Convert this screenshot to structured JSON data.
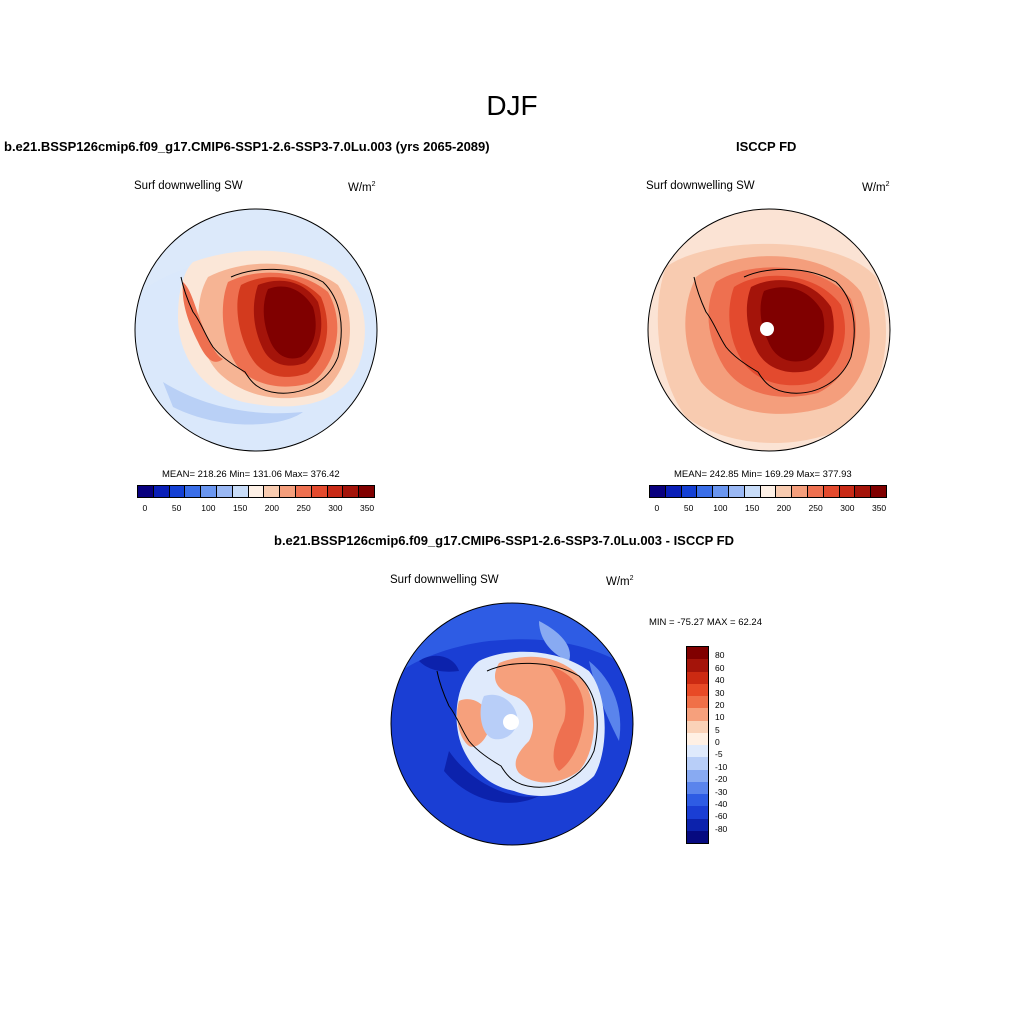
{
  "page": {
    "season": "DJF"
  },
  "units": {
    "base": "W/m",
    "exp": "2"
  },
  "variable": "Surf downwelling SW",
  "panels": {
    "model": {
      "title": "b.e21.BSSP126cmip6.f09_g17.CMIP6-SSP1-2.6-SSP3-7.0Lu.003 (yrs 2065-2089)",
      "stats": "MEAN= 218.26  Min= 131.06  Max= 376.42"
    },
    "obs": {
      "title": "ISCCP FD",
      "stats": "MEAN= 242.85  Min= 169.29  Max= 377.93"
    },
    "diff": {
      "title": "b.e21.BSSP126cmip6.f09_g17.CMIP6-SSP1-2.6-SSP3-7.0Lu.003 - ISCCP FD",
      "stats": "MIN = -75.27 MAX =  62.24"
    }
  },
  "colors": {
    "abs": [
      "#08007f",
      "#0a1fb8",
      "#1440d4",
      "#3a6ee8",
      "#6a96f0",
      "#9ab8f4",
      "#c8dcf8",
      "#fdf0e6",
      "#f8cbb0",
      "#f49e7c",
      "#ee7050",
      "#e34a2e",
      "#c82a16",
      "#a4140a",
      "#800000"
    ],
    "diff": [
      "#800000",
      "#a4140a",
      "#cc2a12",
      "#e84a26",
      "#f07048",
      "#f6a07c",
      "#fad2b8",
      "#fff0e4",
      "#dfeafc",
      "#b8cef8",
      "#88aaf2",
      "#5a84ec",
      "#2e5ce4",
      "#1a3ed4",
      "#0c22ac",
      "#060a80"
    ]
  },
  "chart_data": [
    {
      "type": "heatmap",
      "title": "b.e21.BSSP126cmip6.f09_g17.CMIP6-SSP1-2.6-SSP3-7.0Lu.003 (yrs 2065-2089)",
      "variable": "Surf downwelling SW",
      "units": "W/m2",
      "projection": "south polar stereographic",
      "mean": 218.26,
      "min": 131.06,
      "max": 376.42,
      "colorbar_levels": [
        0,
        25,
        50,
        75,
        100,
        125,
        150,
        175,
        200,
        225,
        250,
        275,
        300,
        325,
        350
      ],
      "colorbar_tick_labels": [
        "0",
        "50",
        "100",
        "150",
        "200",
        "250",
        "300",
        "350"
      ]
    },
    {
      "type": "heatmap",
      "title": "ISCCP FD",
      "variable": "Surf downwelling SW",
      "units": "W/m2",
      "projection": "south polar stereographic",
      "mean": 242.85,
      "min": 169.29,
      "max": 377.93,
      "colorbar_levels": [
        0,
        25,
        50,
        75,
        100,
        125,
        150,
        175,
        200,
        225,
        250,
        275,
        300,
        325,
        350
      ],
      "colorbar_tick_labels": [
        "0",
        "50",
        "100",
        "150",
        "200",
        "250",
        "300",
        "350"
      ]
    },
    {
      "type": "heatmap",
      "title": "b.e21.BSSP126cmip6.f09_g17.CMIP6-SSP1-2.6-SSP3-7.0Lu.003 - ISCCP FD",
      "variable": "Surf downwelling SW",
      "units": "W/m2",
      "projection": "south polar stereographic",
      "min": -75.27,
      "max": 62.24,
      "colorbar_levels": [
        80,
        60,
        40,
        30,
        20,
        10,
        5,
        0,
        -5,
        -10,
        -20,
        -30,
        -40,
        -60,
        -80
      ],
      "colorbar_tick_labels": [
        "80",
        "60",
        "40",
        "30",
        "20",
        "10",
        "5",
        "0",
        "-5",
        "-10",
        "-20",
        "-30",
        "-40",
        "-60",
        "-80"
      ]
    }
  ]
}
